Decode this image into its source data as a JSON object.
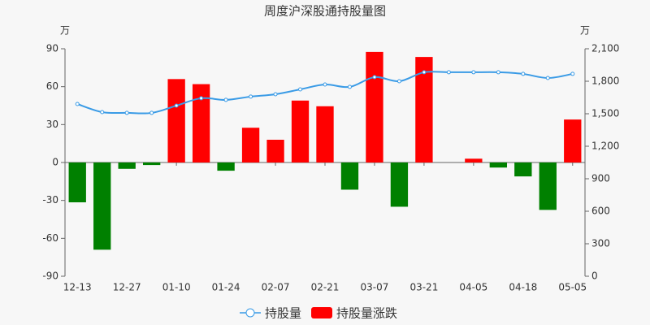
{
  "chart_data": {
    "type": "bar_line",
    "title": "周度沪深股通持股量图",
    "y_unit": "万",
    "y2_unit": "万",
    "categories": [
      "12-13",
      null,
      "12-27",
      null,
      "01-10",
      null,
      "01-24",
      null,
      "02-07",
      null,
      "02-21",
      null,
      "03-07",
      null,
      "03-21",
      null,
      "04-05",
      null,
      "04-18",
      null,
      "05-05"
    ],
    "series": [
      {
        "name": "持股量",
        "type": "line",
        "axis": "y2",
        "color": "#3a9be6",
        "values": [
          1590,
          1515,
          1508,
          1508,
          1575,
          1643,
          1628,
          1658,
          1680,
          1725,
          1770,
          1748,
          1838,
          1800,
          1883,
          1883,
          1883,
          1883,
          1868,
          1830,
          1868
        ]
      },
      {
        "name": "持股量涨跌",
        "type": "bar",
        "color": "#ff0000",
        "negative_color": "#008000",
        "values": [
          -31.5,
          -69,
          -5,
          -2,
          66,
          62,
          -6.5,
          27.5,
          18,
          49,
          44.5,
          -21.5,
          87.5,
          -35,
          83.5,
          0,
          3,
          -4,
          -11,
          -37.5,
          34
        ]
      }
    ],
    "ylim": [
      -90,
      90
    ],
    "yticks": [
      -90,
      -60,
      -30,
      0,
      30,
      60,
      90
    ],
    "y2lim": [
      0,
      2100
    ],
    "y2ticks": [
      0,
      300,
      600,
      900,
      {
        "value": 1200,
        "label": "1,200"
      },
      {
        "value": 1500,
        "label": "1,500"
      },
      {
        "value": 1800,
        "label": "1,800"
      },
      {
        "value": 2100,
        "label": "2,100"
      }
    ],
    "grid": false
  }
}
